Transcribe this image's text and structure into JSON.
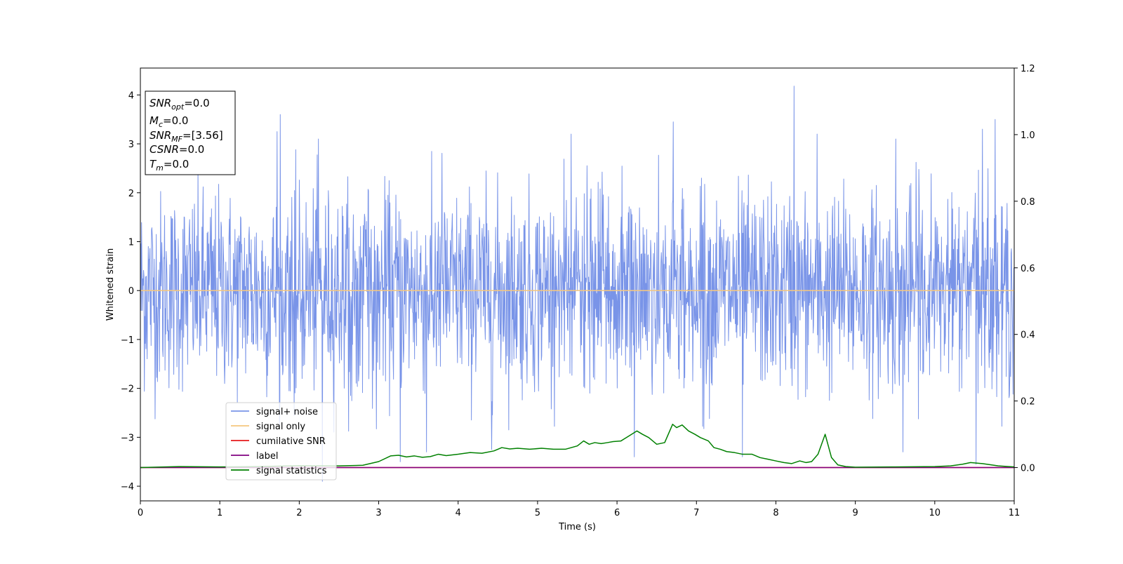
{
  "chart_data": {
    "type": "line",
    "xlabel": "Time (s)",
    "ylabel": "Whitened strain",
    "xlim": [
      0,
      11
    ],
    "ylim": [
      -4.3,
      4.55
    ],
    "y2lim": [
      -0.1,
      1.2
    ],
    "x_ticks": [
      0,
      1,
      2,
      3,
      4,
      5,
      6,
      7,
      8,
      9,
      10,
      11
    ],
    "y_ticks": [
      -4,
      -3,
      -2,
      -1,
      0,
      1,
      2,
      3,
      4
    ],
    "y2_ticks": [
      0.0,
      0.2,
      0.4,
      0.6,
      0.8,
      1.0,
      1.2
    ],
    "grid": false,
    "legend_placement": "lower-left",
    "info_box": {
      "lines": [
        {
          "main": "SNR",
          "sub": "opt",
          "value": "=0.0"
        },
        {
          "main": "M",
          "sub": "c",
          "value": "=0.0"
        },
        {
          "main": "SNR",
          "sub": "MF",
          "value": "=[3.56]"
        },
        {
          "main": "CSNR",
          "sub": "",
          "value": "=0.0"
        },
        {
          "main": "T",
          "sub": "m",
          "value": "=0.0"
        }
      ]
    },
    "series": [
      {
        "name": "signal+ noise",
        "color": "#7994e8",
        "axis": "left",
        "kind": "noise",
        "sample_count": 2200,
        "std": 1.0,
        "peaks": [
          {
            "x": 1.76,
            "y": 3.6
          },
          {
            "x": 2.24,
            "y": 3.1
          },
          {
            "x": 2.29,
            "y": -3.9
          },
          {
            "x": 3.27,
            "y": -3.5
          },
          {
            "x": 3.6,
            "y": -3.3
          },
          {
            "x": 5.42,
            "y": 3.2
          },
          {
            "x": 6.22,
            "y": -3.4
          },
          {
            "x": 6.71,
            "y": 3.45
          },
          {
            "x": 7.58,
            "y": -3.4
          },
          {
            "x": 8.23,
            "y": 4.18
          },
          {
            "x": 8.52,
            "y": 3.2
          },
          {
            "x": 9.51,
            "y": 3.1
          },
          {
            "x": 9.6,
            "y": -3.3
          },
          {
            "x": 10.6,
            "y": 3.3
          },
          {
            "x": 10.76,
            "y": 3.5
          },
          {
            "x": 10.52,
            "y": -3.55
          },
          {
            "x": 1.72,
            "y": 3.25
          },
          {
            "x": 4.42,
            "y": -3.25
          }
        ]
      },
      {
        "name": "signal only",
        "color": "#f5c77e",
        "axis": "left",
        "x": [
          0,
          11
        ],
        "y": [
          0,
          0
        ]
      },
      {
        "name": "cumilative SNR",
        "color": "#e41a1c",
        "axis": "right",
        "x": [
          0,
          11
        ],
        "y": [
          0,
          0
        ]
      },
      {
        "name": "label",
        "color": "#800080",
        "axis": "right",
        "x": [
          0,
          11
        ],
        "y": [
          0,
          0
        ]
      },
      {
        "name": "signal statistics",
        "color": "#008000",
        "axis": "right",
        "x": [
          0,
          0.5,
          1.0,
          1.5,
          2.0,
          2.5,
          2.8,
          3.0,
          3.15,
          3.25,
          3.35,
          3.45,
          3.55,
          3.65,
          3.75,
          3.85,
          4.0,
          4.15,
          4.3,
          4.45,
          4.55,
          4.65,
          4.75,
          4.9,
          5.05,
          5.2,
          5.35,
          5.5,
          5.58,
          5.65,
          5.72,
          5.8,
          5.88,
          5.95,
          6.05,
          6.15,
          6.25,
          6.32,
          6.4,
          6.5,
          6.6,
          6.7,
          6.75,
          6.82,
          6.9,
          6.98,
          7.05,
          7.15,
          7.22,
          7.3,
          7.38,
          7.48,
          7.58,
          7.7,
          7.8,
          7.9,
          8.0,
          8.1,
          8.2,
          8.3,
          8.38,
          8.45,
          8.53,
          8.62,
          8.7,
          8.78,
          8.88,
          9.0,
          9.5,
          10.0,
          10.2,
          10.35,
          10.45,
          10.6,
          10.8,
          11.0
        ],
        "y": [
          0.0,
          0.003,
          0.002,
          0.003,
          0.006,
          0.005,
          0.007,
          0.018,
          0.035,
          0.037,
          0.032,
          0.035,
          0.031,
          0.033,
          0.04,
          0.036,
          0.04,
          0.045,
          0.043,
          0.05,
          0.06,
          0.056,
          0.058,
          0.055,
          0.058,
          0.055,
          0.055,
          0.065,
          0.08,
          0.07,
          0.075,
          0.072,
          0.075,
          0.078,
          0.08,
          0.095,
          0.11,
          0.1,
          0.09,
          0.07,
          0.075,
          0.13,
          0.12,
          0.128,
          0.11,
          0.1,
          0.09,
          0.08,
          0.06,
          0.055,
          0.048,
          0.045,
          0.04,
          0.04,
          0.03,
          0.025,
          0.02,
          0.015,
          0.012,
          0.02,
          0.015,
          0.018,
          0.04,
          0.1,
          0.03,
          0.008,
          0.003,
          0.001,
          0.002,
          0.003,
          0.005,
          0.01,
          0.015,
          0.012,
          0.005,
          0.002
        ]
      }
    ]
  }
}
